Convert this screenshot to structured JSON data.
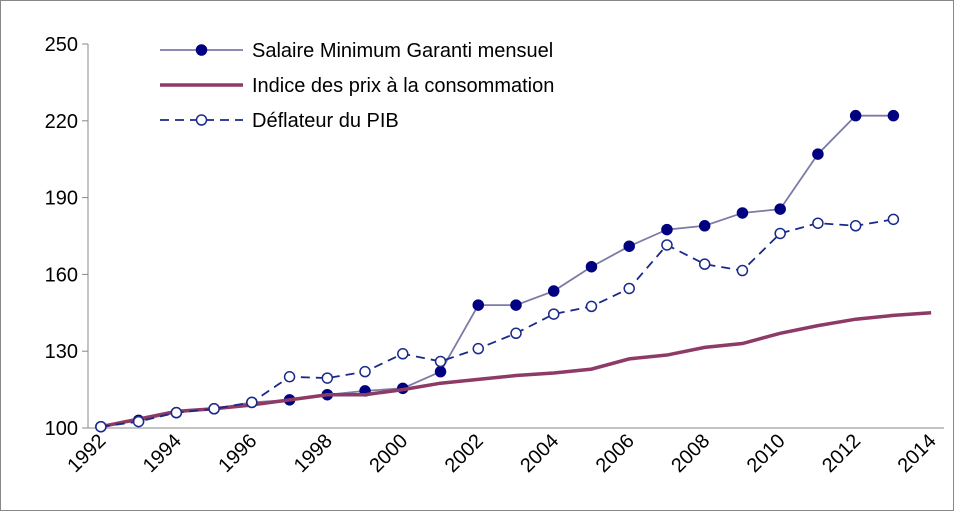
{
  "chart_data": {
    "type": "line",
    "categories": [
      "1992",
      null,
      "1994",
      null,
      "1996",
      null,
      "1998",
      null,
      "2000",
      null,
      "2002",
      null,
      "2004",
      null,
      "2006",
      null,
      "2008",
      null,
      "2010",
      null,
      "2012",
      null,
      "2014"
    ],
    "series": [
      {
        "name": "Salaire Minimum Garanti mensuel",
        "color": "#000080",
        "line_color": "#7b7ba6",
        "marker": "filled",
        "dash": false,
        "values": [
          100.5,
          103,
          106,
          107.5,
          110,
          111,
          113,
          114.5,
          115.5,
          122,
          148,
          148,
          153.5,
          163,
          171,
          177.5,
          179,
          184,
          185.5,
          207,
          222,
          222,
          null
        ]
      },
      {
        "name": "Indice des prix à la consommation",
        "color": "#8e3a66",
        "line_color": "#8e3a66",
        "marker": "none",
        "dash": false,
        "values": [
          100.5,
          103.5,
          106.5,
          107.5,
          109,
          111,
          113,
          113,
          115,
          117.5,
          119,
          120.5,
          121.5,
          123,
          127,
          128.5,
          131.5,
          133,
          137,
          140,
          142.5,
          144,
          145
        ]
      },
      {
        "name": "Déflateur du PIB",
        "color": "#1a2a8a",
        "line_color": "#1a2a8a",
        "marker": "open",
        "dash": true,
        "values": [
          100.5,
          102.5,
          106,
          107.5,
          110,
          120,
          119.5,
          122,
          129,
          126,
          131,
          137,
          144.5,
          147.5,
          154.5,
          171.5,
          164,
          161.5,
          176,
          180,
          179,
          181.5,
          null
        ]
      }
    ],
    "ylim": [
      100,
      250
    ],
    "yticks": [
      100,
      130,
      160,
      190,
      220,
      250
    ],
    "legend": "top-left"
  }
}
